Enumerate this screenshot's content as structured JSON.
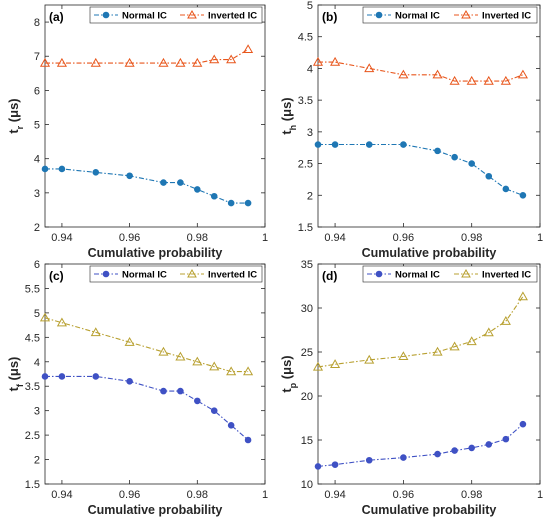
{
  "chart_data": [
    {
      "type": "line",
      "panel_label": "(a)",
      "xlabel": "Cumulative probability",
      "ylabel": "t",
      "ylabel_sub": "r",
      "ylabel_unit": "(μs)",
      "xlim": [
        0.935,
        1.0
      ],
      "ylim": [
        2,
        8.5
      ],
      "xticks": [
        0.94,
        0.96,
        0.98,
        1
      ],
      "xtick_labels": [
        "0.94",
        "0.96",
        "0.98",
        "1"
      ],
      "yticks": [
        2,
        3,
        4,
        5,
        6,
        7,
        8
      ],
      "ytick_labels": [
        "2",
        "3",
        "4",
        "5",
        "6",
        "7",
        "8"
      ],
      "legend_position": "top",
      "series": [
        {
          "name": "Normal IC",
          "color": "#1f77b4",
          "marker": "circle",
          "x": [
            0.935,
            0.94,
            0.95,
            0.96,
            0.97,
            0.975,
            0.98,
            0.985,
            0.99,
            0.995
          ],
          "y": [
            3.7,
            3.7,
            3.6,
            3.5,
            3.3,
            3.3,
            3.1,
            2.9,
            2.7,
            2.7
          ]
        },
        {
          "name": "Inverted IC",
          "color": "#e8561c",
          "marker": "triangle",
          "x": [
            0.935,
            0.94,
            0.95,
            0.96,
            0.97,
            0.975,
            0.98,
            0.985,
            0.99,
            0.995
          ],
          "y": [
            6.8,
            6.8,
            6.8,
            6.8,
            6.8,
            6.8,
            6.8,
            6.9,
            6.9,
            7.2
          ]
        }
      ]
    },
    {
      "type": "line",
      "panel_label": "(b)",
      "xlabel": "Cumulative probability",
      "ylabel": "t",
      "ylabel_sub": "h",
      "ylabel_unit": "(μs)",
      "xlim": [
        0.935,
        1.0
      ],
      "ylim": [
        1.5,
        5
      ],
      "xticks": [
        0.94,
        0.96,
        0.98,
        1
      ],
      "xtick_labels": [
        "0.94",
        "0.96",
        "0.98",
        "1"
      ],
      "yticks": [
        1.5,
        2,
        2.5,
        3,
        3.5,
        4,
        4.5,
        5
      ],
      "ytick_labels": [
        "1.5",
        "2",
        "2.5",
        "3",
        "3.5",
        "4",
        "4.5",
        "5"
      ],
      "legend_position": "top",
      "series": [
        {
          "name": "Normal IC",
          "color": "#1f77b4",
          "marker": "circle",
          "x": [
            0.935,
            0.94,
            0.95,
            0.96,
            0.97,
            0.975,
            0.98,
            0.985,
            0.99,
            0.995
          ],
          "y": [
            2.8,
            2.8,
            2.8,
            2.8,
            2.7,
            2.6,
            2.5,
            2.3,
            2.1,
            2.0
          ]
        },
        {
          "name": "Inverted IC",
          "color": "#e8561c",
          "marker": "triangle",
          "x": [
            0.935,
            0.94,
            0.95,
            0.96,
            0.97,
            0.975,
            0.98,
            0.985,
            0.99,
            0.995
          ],
          "y": [
            4.1,
            4.1,
            4.0,
            3.9,
            3.9,
            3.8,
            3.8,
            3.8,
            3.8,
            3.9
          ]
        }
      ]
    },
    {
      "type": "line",
      "panel_label": "(c)",
      "xlabel": "Cumulative probability",
      "ylabel": "t",
      "ylabel_sub": "f",
      "ylabel_unit": "(μs)",
      "xlim": [
        0.935,
        1.0
      ],
      "ylim": [
        1.5,
        6
      ],
      "xticks": [
        0.94,
        0.96,
        0.98,
        1
      ],
      "xtick_labels": [
        "0.94",
        "0.96",
        "0.98",
        "1"
      ],
      "yticks": [
        1.5,
        2,
        2.5,
        3,
        3.5,
        4,
        4.5,
        5,
        5.5,
        6
      ],
      "ytick_labels": [
        "1.5",
        "2",
        "2.5",
        "3",
        "3.5",
        "4",
        "4.5",
        "5",
        "5.5",
        "6"
      ],
      "legend_position": "top",
      "series": [
        {
          "name": "Normal IC",
          "color": "#3f51c4",
          "marker": "circle",
          "x": [
            0.935,
            0.94,
            0.95,
            0.96,
            0.97,
            0.975,
            0.98,
            0.985,
            0.99,
            0.995
          ],
          "y": [
            3.7,
            3.7,
            3.7,
            3.6,
            3.4,
            3.4,
            3.2,
            3.0,
            2.7,
            2.4
          ]
        },
        {
          "name": "Inverted IC",
          "color": "#b8a030",
          "marker": "triangle",
          "x": [
            0.935,
            0.94,
            0.95,
            0.96,
            0.97,
            0.975,
            0.98,
            0.985,
            0.99,
            0.995
          ],
          "y": [
            4.9,
            4.8,
            4.6,
            4.4,
            4.2,
            4.1,
            4.0,
            3.9,
            3.8,
            3.8
          ]
        }
      ]
    },
    {
      "type": "line",
      "panel_label": "(d)",
      "xlabel": "Cumulative probability",
      "ylabel": "t",
      "ylabel_sub": "p",
      "ylabel_unit": "(μs)",
      "xlim": [
        0.935,
        1.0
      ],
      "ylim": [
        10,
        35
      ],
      "xticks": [
        0.94,
        0.96,
        0.98,
        1
      ],
      "xtick_labels": [
        "0.94",
        "0.96",
        "0.98",
        "1"
      ],
      "yticks": [
        10,
        15,
        20,
        25,
        30,
        35
      ],
      "ytick_labels": [
        "10",
        "15",
        "20",
        "25",
        "30",
        "35"
      ],
      "legend_position": "top",
      "series": [
        {
          "name": "Normal IC",
          "color": "#3f51c4",
          "marker": "circle",
          "x": [
            0.935,
            0.94,
            0.95,
            0.96,
            0.97,
            0.975,
            0.98,
            0.985,
            0.99,
            0.995
          ],
          "y": [
            12.0,
            12.2,
            12.7,
            13.0,
            13.4,
            13.8,
            14.1,
            14.5,
            15.1,
            16.8
          ]
        },
        {
          "name": "Inverted IC",
          "color": "#b8a030",
          "marker": "triangle",
          "x": [
            0.935,
            0.94,
            0.95,
            0.96,
            0.97,
            0.975,
            0.98,
            0.985,
            0.99,
            0.995
          ],
          "y": [
            23.3,
            23.6,
            24.1,
            24.5,
            25.0,
            25.6,
            26.2,
            27.2,
            28.5,
            31.3
          ]
        }
      ]
    }
  ]
}
